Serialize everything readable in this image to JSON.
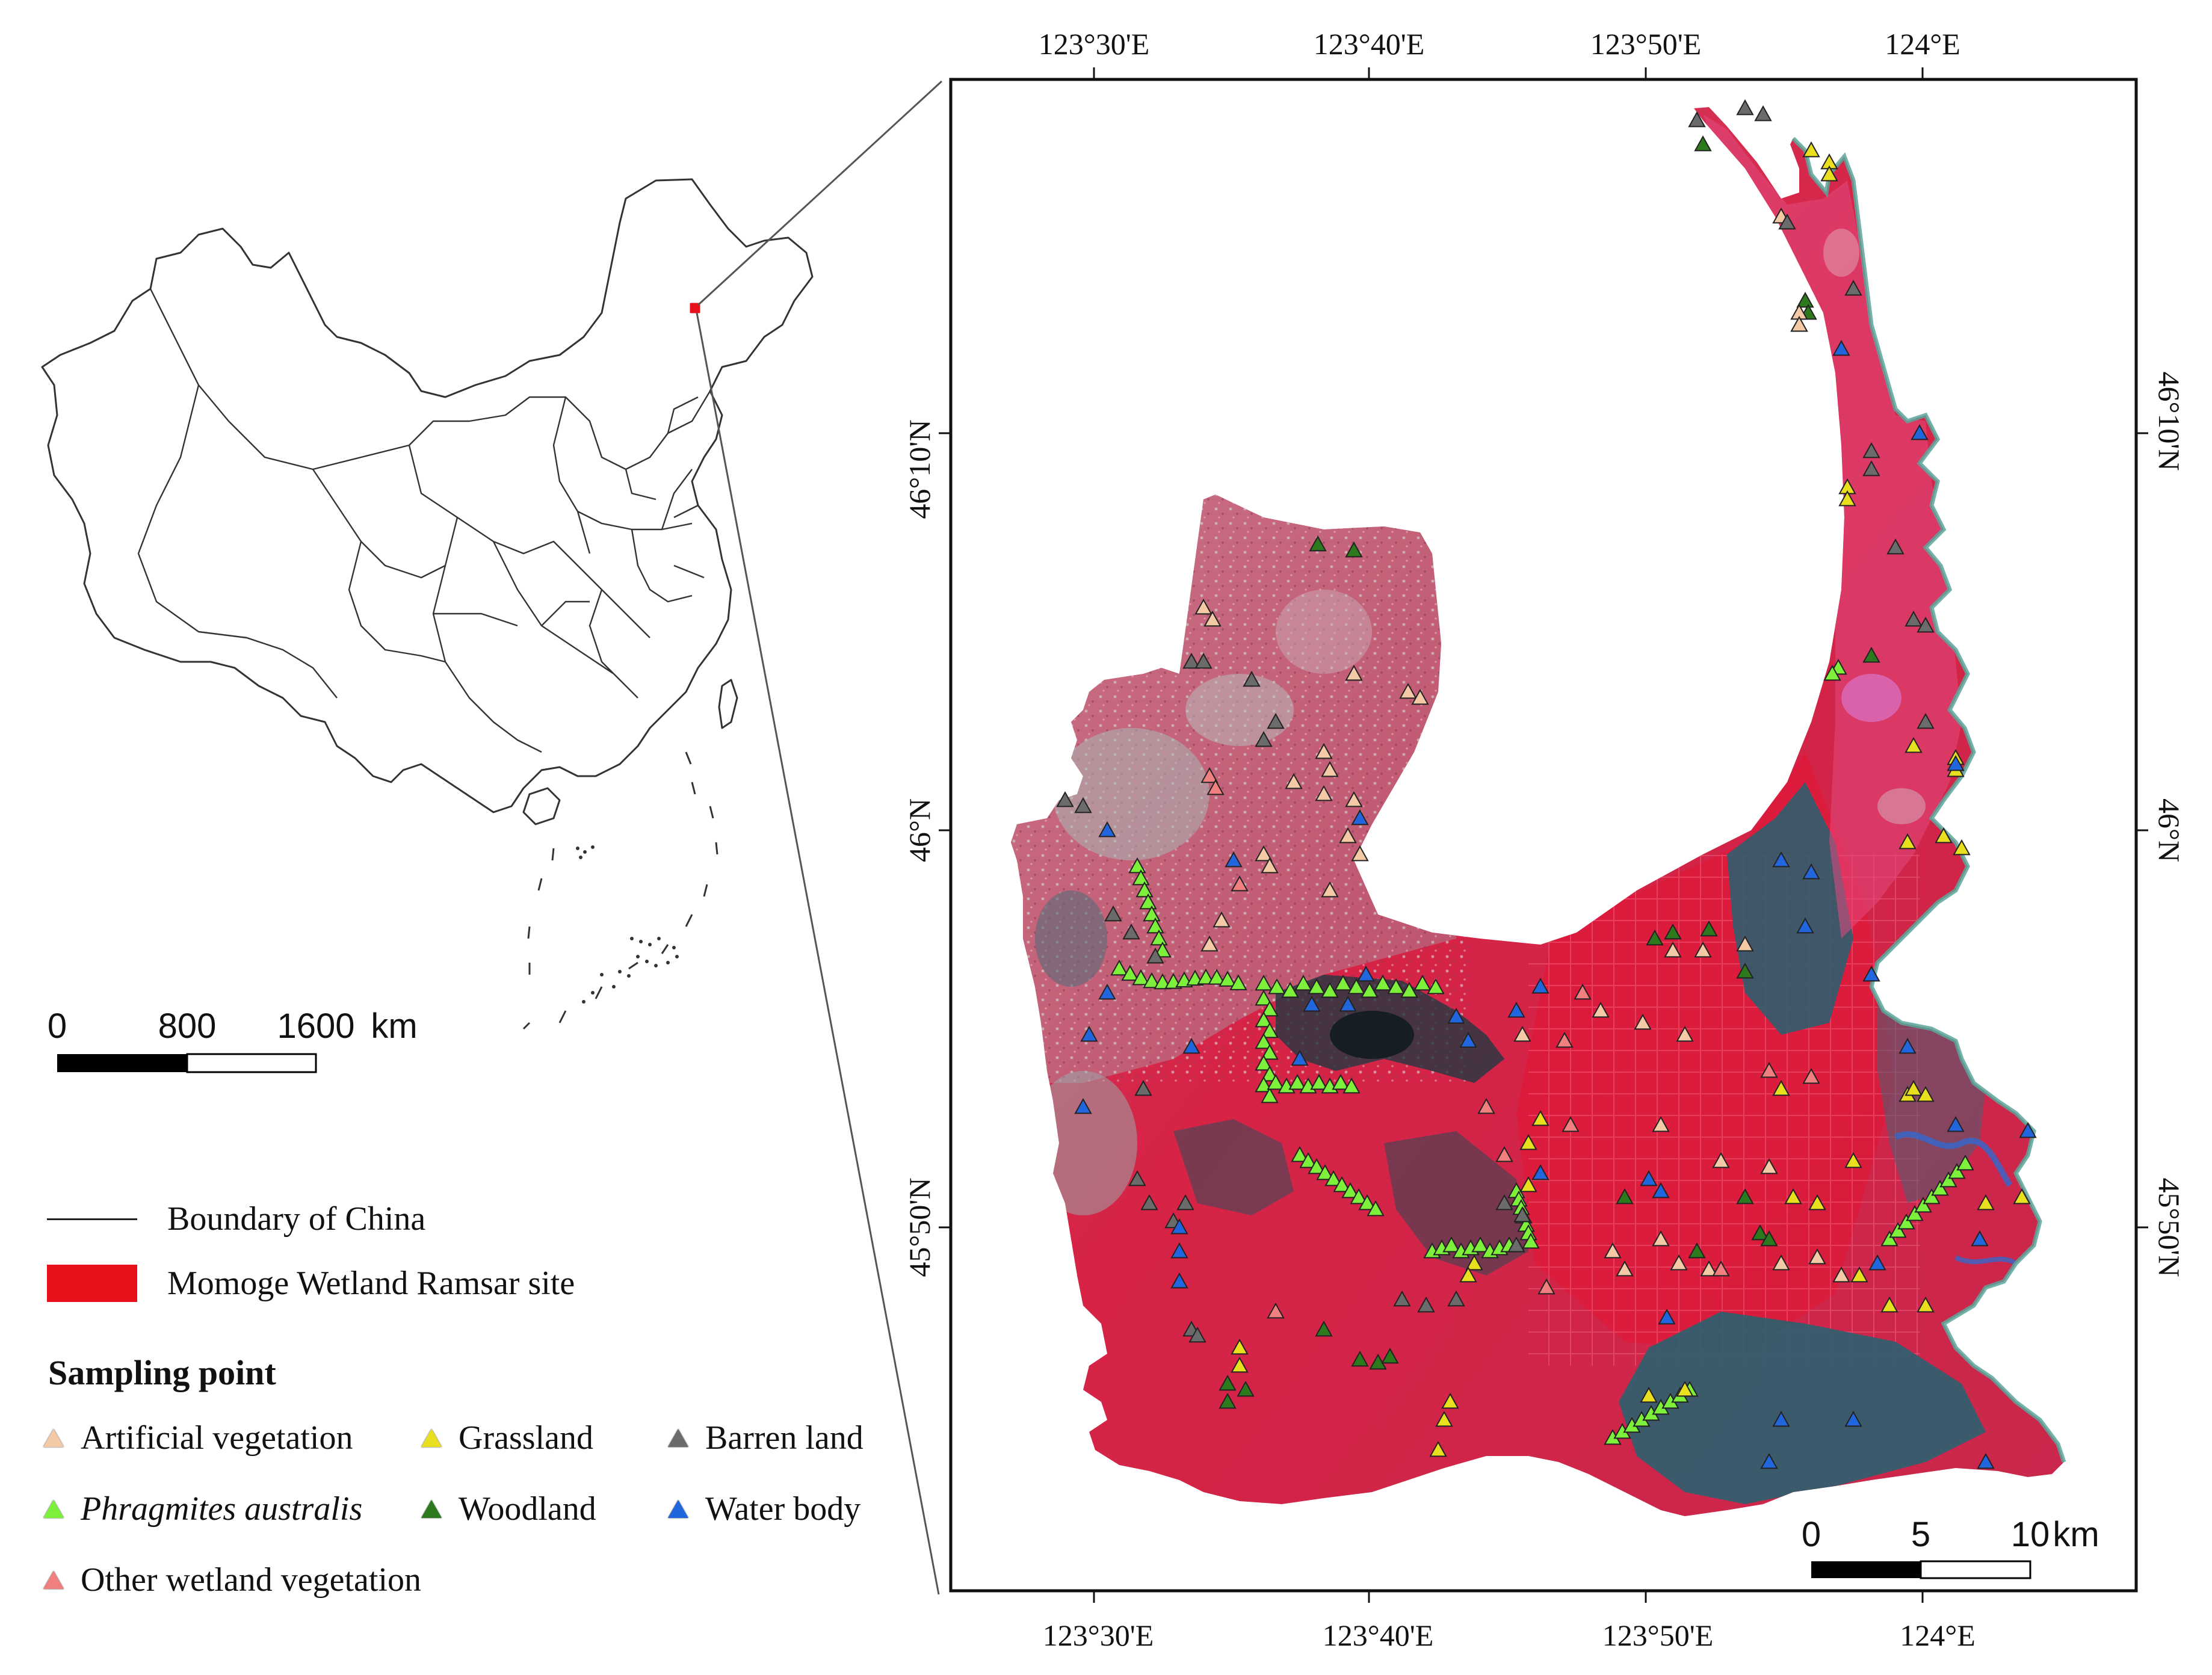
{
  "inset_map": {
    "scale_labels": [
      "0",
      "800",
      "1600",
      "km"
    ]
  },
  "main_map": {
    "top_ticks": [
      "123°30'E",
      "123°40'E",
      "123°50'E",
      "124°E"
    ],
    "bottom_ticks": [
      "123°30'E",
      "123°40'E",
      "123°50'E",
      "124°E"
    ],
    "left_ticks": [
      "46°10'N",
      "46°N",
      "45°50'N"
    ],
    "right_ticks": [
      "46°10'N",
      "46°N",
      "45°50'N"
    ],
    "scale_labels": [
      "0",
      "5",
      "10",
      "km"
    ]
  },
  "legend": {
    "boundary_label": "Boundary of China",
    "ramsar_label": "Momoge Wetland Ramsar site",
    "sampling_title": "Sampling  point",
    "items": [
      {
        "label": "Artificial vegetation",
        "color": "#f4c9a6",
        "italic": false
      },
      {
        "label": "Grassland",
        "color": "#e8df1e",
        "italic": false
      },
      {
        "label": "Barren land",
        "color": "#6b6b6b",
        "italic": false
      },
      {
        "label": "Phragmites australis",
        "color": "#7cf03a",
        "italic": true
      },
      {
        "label": "Woodland",
        "color": "#2d7a1e",
        "italic": false
      },
      {
        "label": "Water body",
        "color": "#2266dd",
        "italic": false
      },
      {
        "label": "Other wetland vegetation",
        "color": "#f08080",
        "italic": false
      }
    ]
  },
  "colors": {
    "ramsar_red": "#e8101a",
    "image_red": "#d8284a",
    "water_teal": "#2f5e6e",
    "phragmites": "#7cf03a",
    "woodland": "#2d7a1e",
    "grassland": "#e8df1e",
    "artificial": "#f4c9a6",
    "barren": "#6b6b6b",
    "water_body": "#2266dd",
    "other_wetland": "#f08080"
  }
}
